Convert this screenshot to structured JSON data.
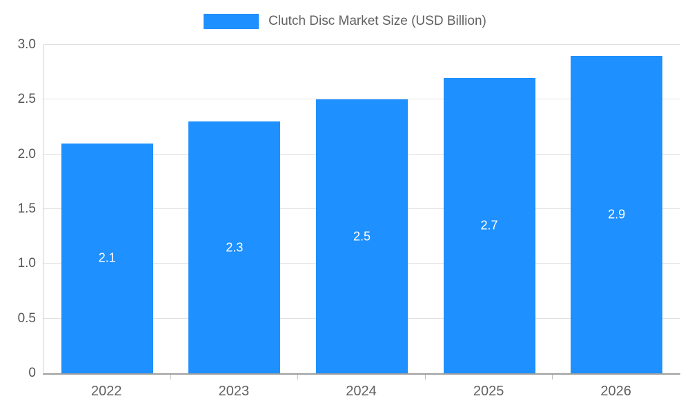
{
  "chart_data": {
    "type": "bar",
    "title": "Clutch Disc Market Size (USD Billion)",
    "categories": [
      "2022",
      "2023",
      "2024",
      "2025",
      "2026"
    ],
    "values": [
      2.1,
      2.3,
      2.5,
      2.7,
      2.9
    ],
    "value_labels": [
      "2.1",
      "2.3",
      "2.5",
      "2.7",
      "2.9"
    ],
    "xlabel": "",
    "ylabel": "",
    "ylim": [
      0,
      3.0
    ],
    "yticks": [
      0,
      0.5,
      1.0,
      1.5,
      2.0,
      2.5,
      3.0
    ],
    "ytick_labels": [
      "0",
      "0.5",
      "1.0",
      "1.5",
      "2.0",
      "2.5",
      "3.0"
    ],
    "grid": true,
    "legend_position": "top",
    "bar_color": "#1e90ff",
    "value_label_color": "#ffffff"
  }
}
